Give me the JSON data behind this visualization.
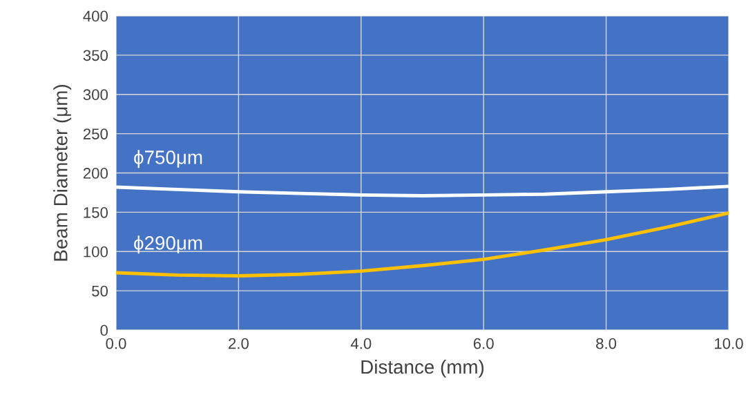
{
  "chart_data": {
    "type": "line",
    "xlabel": "Distance (mm)",
    "ylabel": "Beam Diameter (μm)",
    "x": [
      0,
      1,
      2,
      3,
      4,
      5,
      6,
      7,
      8,
      9,
      10
    ],
    "series": [
      {
        "name": "ϕ750μm",
        "color": "#ffffff",
        "values": [
          182,
          179,
          176,
          174,
          172,
          171,
          172,
          173,
          176,
          179,
          183
        ]
      },
      {
        "name": "ϕ290μm",
        "color": "#ffc000",
        "values": [
          73,
          70,
          69,
          71,
          75,
          82,
          90,
          102,
          115,
          131,
          149
        ]
      }
    ],
    "xlim": [
      0,
      10
    ],
    "xticks": [
      {
        "value": 0,
        "label": "0.0"
      },
      {
        "value": 2,
        "label": "2.0"
      },
      {
        "value": 4,
        "label": "4.0"
      },
      {
        "value": 6,
        "label": "6.0"
      },
      {
        "value": 8,
        "label": "8.0"
      },
      {
        "value": 10,
        "label": "10.0"
      }
    ],
    "ylim": [
      0,
      400
    ],
    "yticks": [
      0,
      50,
      100,
      150,
      200,
      250,
      300,
      350,
      400
    ],
    "grid": true,
    "legend": false,
    "marker": "none",
    "line_style": "solid"
  }
}
